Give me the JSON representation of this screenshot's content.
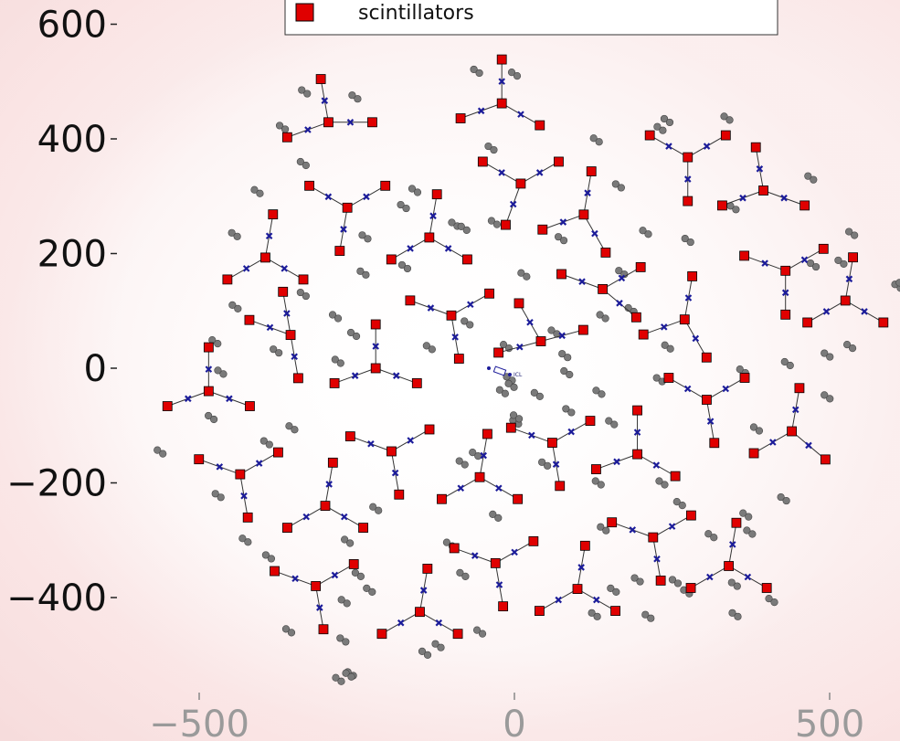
{
  "chart_data": {
    "type": "scatter",
    "title": "",
    "xlabel": "",
    "ylabel": "",
    "xlim": [
      -640,
      620
    ],
    "ylim": [
      -590,
      640
    ],
    "yticks": [
      600,
      400,
      200,
      0,
      -200,
      -400
    ],
    "ytick_labels": [
      "600",
      "400",
      "200",
      "0",
      "−200",
      "−400"
    ],
    "xticks": [
      -500,
      0,
      500
    ],
    "xtick_labels": [
      "−500",
      "0",
      "500"
    ],
    "legend": {
      "position": "top",
      "entries": [
        {
          "name": "scintillators",
          "color": "#e00000",
          "marker": "square"
        }
      ]
    },
    "annotation": {
      "text": "ICL",
      "x": 0,
      "y": 0
    },
    "colors": {
      "scintillator": "#e00000",
      "muon": "#1c1c9a",
      "pair": "#7a7a7a",
      "line": "#333333"
    },
    "stations": [
      {
        "c": [
          -295,
          429
        ],
        "a": [
          0,
          100,
          200
        ]
      },
      {
        "c": [
          -20,
          462
        ],
        "a": [
          90,
          200,
          330
        ]
      },
      {
        "c": [
          275,
          368
        ],
        "a": [
          30,
          150,
          270
        ]
      },
      {
        "c": [
          395,
          310
        ],
        "a": [
          100,
          200,
          340
        ]
      },
      {
        "c": [
          -265,
          280
        ],
        "a": [
          30,
          150,
          260
        ]
      },
      {
        "c": [
          -135,
          228
        ],
        "a": [
          80,
          210,
          330
        ]
      },
      {
        "c": [
          10,
          322
        ],
        "a": [
          30,
          150,
          250
        ]
      },
      {
        "c": [
          110,
          268
        ],
        "a": [
          80,
          200,
          300
        ]
      },
      {
        "c": [
          -395,
          193
        ],
        "a": [
          80,
          210,
          330
        ]
      },
      {
        "c": [
          -355,
          58
        ],
        "a": [
          100,
          160,
          280
        ]
      },
      {
        "c": [
          -100,
          92
        ],
        "a": [
          30,
          160,
          280
        ]
      },
      {
        "c": [
          42,
          47
        ],
        "a": [
          15,
          120,
          195
        ]
      },
      {
        "c": [
          140,
          138
        ],
        "a": [
          30,
          160,
          320
        ]
      },
      {
        "c": [
          270,
          85
        ],
        "a": [
          80,
          200,
          300
        ]
      },
      {
        "c": [
          430,
          170
        ],
        "a": [
          30,
          160,
          270
        ]
      },
      {
        "c": [
          525,
          118
        ],
        "a": [
          80,
          210,
          330
        ]
      },
      {
        "c": [
          -220,
          0
        ],
        "a": [
          90,
          200,
          340
        ]
      },
      {
        "c": [
          -485,
          -40
        ],
        "a": [
          90,
          200,
          340
        ]
      },
      {
        "c": [
          -195,
          -145
        ],
        "a": [
          30,
          160,
          280
        ]
      },
      {
        "c": [
          60,
          -130
        ],
        "a": [
          30,
          160,
          280
        ]
      },
      {
        "c": [
          195,
          -150
        ],
        "a": [
          90,
          200,
          330
        ]
      },
      {
        "c": [
          305,
          -55
        ],
        "a": [
          30,
          150,
          280
        ]
      },
      {
        "c": [
          440,
          -110
        ],
        "a": [
          80,
          210,
          320
        ]
      },
      {
        "c": [
          -435,
          -185
        ],
        "a": [
          30,
          160,
          280
        ]
      },
      {
        "c": [
          -300,
          -240
        ],
        "a": [
          80,
          210,
          330
        ]
      },
      {
        "c": [
          -55,
          -190
        ],
        "a": [
          80,
          210,
          330
        ]
      },
      {
        "c": [
          -315,
          -380
        ],
        "a": [
          30,
          160,
          280
        ]
      },
      {
        "c": [
          -150,
          -425
        ],
        "a": [
          80,
          210,
          330
        ]
      },
      {
        "c": [
          -30,
          -340
        ],
        "a": [
          30,
          160,
          280
        ]
      },
      {
        "c": [
          100,
          -385
        ],
        "a": [
          80,
          210,
          330
        ]
      },
      {
        "c": [
          220,
          -295
        ],
        "a": [
          30,
          160,
          280
        ]
      },
      {
        "c": [
          340,
          -345
        ],
        "a": [
          80,
          210,
          330
        ]
      }
    ],
    "pairs": [
      [
        -333,
        482
      ],
      [
        -253,
        473
      ],
      [
        -368,
        420
      ],
      [
        -158,
        310
      ],
      [
        -335,
        357
      ],
      [
        -408,
        308
      ],
      [
        -237,
        229
      ],
      [
        -444,
        233
      ],
      [
        -176,
        282
      ],
      [
        -95,
        251
      ],
      [
        -37,
        384
      ],
      [
        -60,
        518
      ],
      [
        0,
        513
      ],
      [
        130,
        398
      ],
      [
        165,
        318
      ],
      [
        242,
        432
      ],
      [
        231,
        418
      ],
      [
        337,
        436
      ],
      [
        470,
        332
      ],
      [
        474,
        180
      ],
      [
        347,
        280
      ],
      [
        275,
        223
      ],
      [
        208,
        237
      ],
      [
        74,
        226
      ],
      [
        -32,
        254
      ],
      [
        -80,
        244
      ],
      [
        -174,
        177
      ],
      [
        -240,
        166
      ],
      [
        -284,
        90
      ],
      [
        -443,
        107
      ],
      [
        -335,
        129
      ],
      [
        -255,
        59
      ],
      [
        -280,
        12
      ],
      [
        -378,
        30
      ],
      [
        -135,
        36
      ],
      [
        -75,
        79
      ],
      [
        15,
        163
      ],
      [
        -13,
        38
      ],
      [
        63,
        63
      ],
      [
        -8,
        -18
      ],
      [
        80,
        22
      ],
      [
        140,
        90
      ],
      [
        170,
        167
      ],
      [
        185,
        102
      ],
      [
        243,
        37
      ],
      [
        230,
        -20
      ],
      [
        134,
        -42
      ],
      [
        86,
        -74
      ],
      [
        36,
        -46
      ],
      [
        154,
        -95
      ],
      [
        234,
        -200
      ],
      [
        362,
        -5
      ],
      [
        384,
        -106
      ],
      [
        427,
        -228
      ],
      [
        367,
        -256
      ],
      [
        433,
        8
      ],
      [
        496,
        -50
      ],
      [
        496,
        23
      ],
      [
        532,
        38
      ],
      [
        535,
        235
      ],
      [
        608,
        143
      ],
      [
        615,
        146
      ],
      [
        518,
        185
      ],
      [
        -562,
        -146
      ],
      [
        -481,
        -86
      ],
      [
        -466,
        -7
      ],
      [
        -475,
        46
      ],
      [
        -353,
        -104
      ],
      [
        -393,
        -130
      ],
      [
        -470,
        -222
      ],
      [
        -427,
        -300
      ],
      [
        -390,
        -329
      ],
      [
        -220,
        -245
      ],
      [
        -265,
        -302
      ],
      [
        -248,
        -360
      ],
      [
        -358,
        -458
      ],
      [
        -272,
        -474
      ],
      [
        -270,
        -407
      ],
      [
        -230,
        -387
      ],
      [
        -142,
        -497
      ],
      [
        -121,
        -484
      ],
      [
        -55,
        -460
      ],
      [
        -82,
        -360
      ],
      [
        -103,
        -307
      ],
      [
        -30,
        -258
      ],
      [
        -62,
        -150
      ],
      [
        -83,
        -165
      ],
      [
        2,
        -94
      ],
      [
        3,
        -85
      ],
      [
        -19,
        -41
      ],
      [
        -5,
        -30
      ],
      [
        83,
        -8
      ],
      [
        48,
        -167
      ],
      [
        133,
        -200
      ],
      [
        141,
        -280
      ],
      [
        157,
        -387
      ],
      [
        195,
        -369
      ],
      [
        127,
        -430
      ],
      [
        212,
        -433
      ],
      [
        255,
        -372
      ],
      [
        273,
        -390
      ],
      [
        262,
        -236
      ],
      [
        312,
        -292
      ],
      [
        373,
        -286
      ],
      [
        349,
        -377
      ],
      [
        408,
        -405
      ],
      [
        350,
        -430
      ],
      [
        -279,
        -543
      ],
      [
        -260,
        -533
      ],
      [
        -263,
        -535
      ]
    ]
  }
}
